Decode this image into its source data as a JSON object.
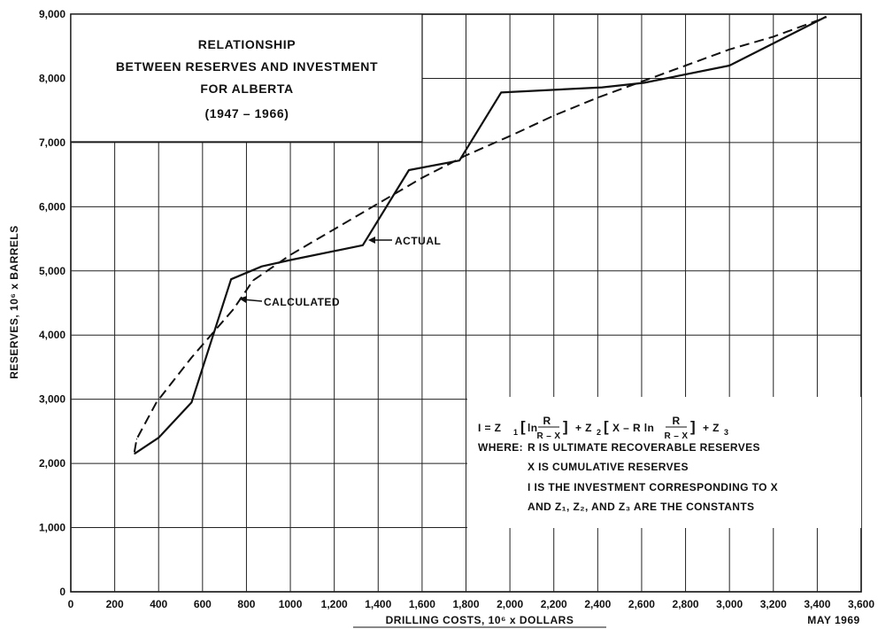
{
  "chart_data": {
    "type": "line",
    "title": [
      "RELATIONSHIP",
      "BETWEEN RESERVES AND INVESTMENT",
      "FOR ALBERTA",
      "(1947 – 1966)"
    ],
    "xlabel": "DRILLING COSTS, 10⁶ x DOLLARS",
    "ylabel": "RESERVES, 10⁶ x BARRELS",
    "xlim": [
      0,
      3600
    ],
    "ylim": [
      0,
      9000
    ],
    "x_ticks": [
      0,
      200,
      400,
      600,
      800,
      1000,
      1200,
      1400,
      1600,
      1800,
      2000,
      2200,
      2400,
      2600,
      2800,
      3000,
      3200,
      3400,
      3600
    ],
    "x_tick_labels": [
      "0",
      "200",
      "400",
      "600",
      "800",
      "1000",
      "1,200",
      "1,400",
      "1,600",
      "1,800",
      "2,000",
      "2,200",
      "2,400",
      "2,600",
      "2,800",
      "3,000",
      "3,200",
      "3,400",
      "3,600"
    ],
    "y_ticks": [
      0,
      1000,
      2000,
      3000,
      4000,
      5000,
      6000,
      7000,
      8000,
      9000
    ],
    "y_tick_labels": [
      "0",
      "1,000",
      "2,000",
      "3,000",
      "4,000",
      "5,000",
      "6,000",
      "7,000",
      "8,000",
      "9,000"
    ],
    "grid": true,
    "series": [
      {
        "name": "ACTUAL",
        "style": "solid",
        "points": [
          [
            290,
            2150
          ],
          [
            400,
            2400
          ],
          [
            550,
            2950
          ],
          [
            730,
            4870
          ],
          [
            870,
            5070
          ],
          [
            1000,
            5170
          ],
          [
            1330,
            5400
          ],
          [
            1540,
            6570
          ],
          [
            1770,
            6720
          ],
          [
            1960,
            7780
          ],
          [
            2420,
            7860
          ],
          [
            2610,
            7930
          ],
          [
            3000,
            8200
          ],
          [
            3440,
            8960
          ]
        ]
      },
      {
        "name": "CALCULATED",
        "style": "dashed",
        "points": [
          [
            290,
            2180
          ],
          [
            300,
            2380
          ],
          [
            390,
            2950
          ],
          [
            550,
            3650
          ],
          [
            740,
            4400
          ],
          [
            830,
            4850
          ],
          [
            1000,
            5250
          ],
          [
            1200,
            5650
          ],
          [
            1400,
            6050
          ],
          [
            1600,
            6450
          ],
          [
            1800,
            6800
          ],
          [
            2000,
            7100
          ],
          [
            2200,
            7420
          ],
          [
            2400,
            7700
          ],
          [
            2600,
            7950
          ],
          [
            2800,
            8200
          ],
          [
            3000,
            8450
          ],
          [
            3200,
            8650
          ],
          [
            3440,
            8950
          ]
        ]
      }
    ],
    "annotations": {
      "actual": "ACTUAL",
      "calculated": "CALCULATED",
      "formula": {
        "where": "WHERE:",
        "lines": [
          "R IS ULTIMATE RECOVERABLE RESERVES",
          "X IS CUMULATIVE RESERVES",
          "I IS THE INVESTMENT CORRESPONDING TO X",
          "AND Z₁, Z₂, AND Z₃ ARE THE CONSTANTS"
        ]
      }
    },
    "date_stamp": "MAY 1969"
  }
}
